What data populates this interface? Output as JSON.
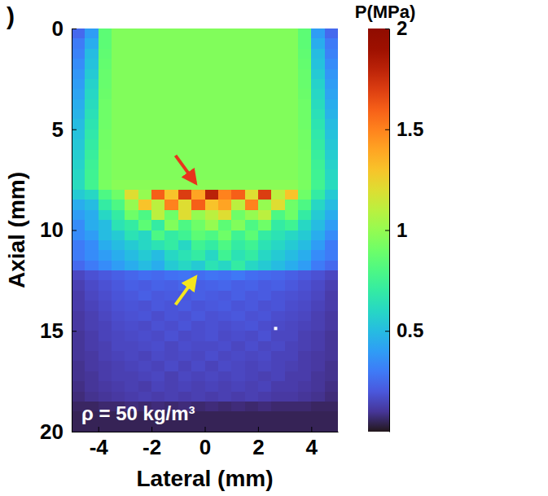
{
  "chart_data": {
    "type": "heatmap",
    "panel_label": ")",
    "x_label": "Lateral (mm)",
    "y_label": "Axial (mm)",
    "annotation": "ρ = 50 kg/m³",
    "color": "turbo",
    "xlim": [
      -5,
      5
    ],
    "ylim": [
      0,
      20
    ],
    "xticks": [
      -4,
      -2,
      0,
      2,
      4
    ],
    "yticks": [
      0,
      5,
      10,
      15,
      20
    ],
    "x": [
      -4.75,
      -4.25,
      -3.75,
      -3.25,
      -2.75,
      -2.25,
      -1.75,
      -1.25,
      -0.75,
      -0.25,
      0.25,
      0.75,
      1.25,
      1.75,
      2.25,
      2.75,
      3.25,
      3.75,
      4.25,
      4.75
    ],
    "y": [
      0.25,
      0.75,
      1.25,
      1.75,
      2.25,
      2.75,
      3.25,
      3.75,
      4.25,
      4.75,
      5.25,
      5.75,
      6.25,
      6.75,
      7.25,
      7.75,
      8.25,
      8.75,
      9.25,
      9.75,
      10.25,
      10.75,
      11.25,
      11.75,
      12.25,
      12.75,
      13.25,
      13.75,
      14.25,
      14.75,
      15.25,
      15.75,
      16.25,
      16.75,
      17.25,
      17.75,
      18.25,
      18.75,
      19.25,
      19.75
    ],
    "z": [
      [
        0.25,
        0.4,
        0.85,
        0.95,
        0.95,
        0.95,
        0.95,
        0.95,
        0.95,
        0.95,
        0.95,
        0.95,
        0.95,
        0.95,
        0.95,
        0.95,
        0.95,
        0.85,
        0.4,
        0.25
      ],
      [
        0.3,
        0.45,
        0.85,
        0.95,
        0.95,
        0.95,
        0.95,
        0.95,
        0.95,
        0.95,
        0.95,
        0.95,
        0.95,
        0.95,
        0.95,
        0.95,
        0.95,
        0.85,
        0.45,
        0.3
      ],
      [
        0.32,
        0.5,
        0.86,
        0.95,
        0.95,
        0.95,
        0.95,
        0.95,
        0.95,
        0.95,
        0.95,
        0.95,
        0.95,
        0.95,
        0.95,
        0.95,
        0.95,
        0.86,
        0.5,
        0.32
      ],
      [
        0.35,
        0.52,
        0.87,
        0.95,
        0.95,
        0.95,
        0.95,
        0.95,
        0.95,
        0.95,
        0.95,
        0.95,
        0.95,
        0.95,
        0.95,
        0.95,
        0.95,
        0.87,
        0.52,
        0.35
      ],
      [
        0.38,
        0.55,
        0.88,
        0.95,
        0.95,
        0.95,
        0.95,
        0.95,
        0.95,
        0.95,
        0.95,
        0.95,
        0.95,
        0.95,
        0.95,
        0.95,
        0.95,
        0.88,
        0.55,
        0.38
      ],
      [
        0.4,
        0.58,
        0.88,
        0.95,
        0.95,
        0.95,
        0.95,
        0.95,
        0.95,
        0.95,
        0.95,
        0.95,
        0.95,
        0.95,
        0.95,
        0.95,
        0.95,
        0.88,
        0.58,
        0.4
      ],
      [
        0.42,
        0.6,
        0.89,
        0.95,
        0.95,
        0.95,
        0.95,
        0.95,
        0.95,
        0.95,
        0.95,
        0.95,
        0.95,
        0.95,
        0.95,
        0.95,
        0.95,
        0.89,
        0.6,
        0.42
      ],
      [
        0.45,
        0.62,
        0.9,
        0.95,
        0.95,
        0.95,
        0.95,
        0.95,
        0.95,
        0.95,
        0.95,
        0.95,
        0.95,
        0.95,
        0.95,
        0.95,
        0.95,
        0.9,
        0.62,
        0.45
      ],
      [
        0.47,
        0.64,
        0.9,
        0.95,
        0.95,
        0.95,
        0.95,
        0.95,
        0.95,
        0.95,
        0.95,
        0.95,
        0.95,
        0.95,
        0.95,
        0.95,
        0.95,
        0.9,
        0.64,
        0.47
      ],
      [
        0.5,
        0.66,
        0.9,
        0.95,
        0.95,
        0.95,
        0.95,
        0.95,
        0.95,
        0.95,
        0.95,
        0.95,
        0.95,
        0.95,
        0.95,
        0.95,
        0.95,
        0.9,
        0.66,
        0.5
      ],
      [
        0.52,
        0.68,
        0.91,
        0.95,
        0.95,
        0.95,
        0.95,
        0.95,
        0.95,
        0.95,
        0.95,
        0.95,
        0.95,
        0.95,
        0.95,
        0.95,
        0.95,
        0.91,
        0.68,
        0.52
      ],
      [
        0.54,
        0.7,
        0.91,
        0.95,
        0.95,
        0.95,
        0.95,
        0.95,
        0.95,
        0.95,
        0.95,
        0.95,
        0.95,
        0.95,
        0.95,
        0.95,
        0.95,
        0.91,
        0.7,
        0.54
      ],
      [
        0.56,
        0.72,
        0.92,
        0.95,
        0.95,
        0.95,
        0.95,
        0.95,
        0.95,
        0.95,
        0.95,
        0.95,
        0.95,
        0.95,
        0.95,
        0.95,
        0.95,
        0.92,
        0.72,
        0.56
      ],
      [
        0.58,
        0.74,
        0.92,
        0.95,
        0.95,
        0.95,
        0.95,
        0.95,
        0.95,
        0.95,
        0.95,
        0.95,
        0.95,
        0.95,
        0.95,
        0.95,
        0.95,
        0.92,
        0.74,
        0.58
      ],
      [
        0.6,
        0.75,
        0.92,
        0.95,
        0.95,
        0.95,
        0.95,
        0.95,
        0.95,
        0.95,
        0.95,
        0.95,
        0.95,
        0.95,
        0.95,
        0.95,
        0.95,
        0.92,
        0.75,
        0.6
      ],
      [
        0.62,
        0.76,
        0.93,
        0.97,
        0.97,
        0.97,
        0.97,
        0.97,
        0.97,
        0.97,
        0.97,
        0.97,
        0.97,
        0.97,
        0.97,
        0.97,
        0.97,
        0.93,
        0.76,
        0.62
      ],
      [
        0.55,
        0.6,
        0.8,
        0.9,
        1.2,
        1.0,
        1.6,
        1.3,
        1.7,
        1.4,
        1.8,
        1.5,
        1.6,
        1.2,
        1.7,
        1.1,
        1.3,
        0.9,
        0.7,
        0.55
      ],
      [
        0.45,
        0.5,
        0.7,
        0.8,
        1.0,
        1.3,
        1.1,
        1.5,
        1.2,
        1.6,
        1.3,
        1.4,
        1.1,
        1.5,
        1.0,
        1.2,
        0.9,
        0.8,
        0.6,
        0.5
      ],
      [
        0.4,
        0.45,
        0.6,
        0.7,
        0.9,
        0.8,
        1.1,
        0.9,
        1.2,
        1.0,
        1.1,
        1.2,
        0.9,
        1.0,
        1.1,
        0.8,
        0.9,
        0.7,
        0.55,
        0.45
      ],
      [
        0.35,
        0.45,
        0.5,
        0.65,
        0.7,
        0.85,
        0.7,
        0.95,
        0.8,
        0.9,
        1.0,
        0.85,
        0.95,
        0.8,
        0.9,
        0.7,
        0.75,
        0.6,
        0.5,
        0.4
      ],
      [
        0.35,
        0.4,
        0.5,
        0.55,
        0.65,
        0.6,
        0.8,
        0.7,
        0.75,
        0.85,
        0.8,
        0.9,
        0.75,
        0.85,
        0.7,
        0.65,
        0.6,
        0.55,
        0.45,
        0.35
      ],
      [
        0.3,
        0.35,
        0.45,
        0.5,
        0.55,
        0.6,
        0.65,
        0.7,
        0.6,
        0.75,
        0.7,
        0.8,
        0.7,
        0.75,
        0.65,
        0.6,
        0.55,
        0.5,
        0.4,
        0.3
      ],
      [
        0.3,
        0.35,
        0.4,
        0.45,
        0.5,
        0.55,
        0.5,
        0.6,
        0.65,
        0.7,
        0.6,
        0.75,
        0.65,
        0.7,
        0.6,
        0.55,
        0.5,
        0.45,
        0.35,
        0.3
      ],
      [
        0.25,
        0.3,
        0.35,
        0.4,
        0.45,
        0.5,
        0.45,
        0.55,
        0.6,
        0.55,
        0.65,
        0.6,
        0.7,
        0.6,
        0.55,
        0.5,
        0.45,
        0.4,
        0.3,
        0.25
      ],
      [
        0.15,
        0.18,
        0.2,
        0.22,
        0.24,
        0.26,
        0.25,
        0.27,
        0.28,
        0.26,
        0.28,
        0.27,
        0.29,
        0.26,
        0.25,
        0.24,
        0.22,
        0.2,
        0.18,
        0.15
      ],
      [
        0.13,
        0.16,
        0.18,
        0.2,
        0.22,
        0.21,
        0.23,
        0.22,
        0.24,
        0.22,
        0.23,
        0.24,
        0.22,
        0.23,
        0.21,
        0.22,
        0.2,
        0.18,
        0.16,
        0.13
      ],
      [
        0.12,
        0.15,
        0.17,
        0.19,
        0.2,
        0.22,
        0.2,
        0.21,
        0.2,
        0.22,
        0.21,
        0.2,
        0.22,
        0.2,
        0.21,
        0.19,
        0.18,
        0.17,
        0.15,
        0.12
      ],
      [
        0.12,
        0.14,
        0.16,
        0.18,
        0.19,
        0.18,
        0.2,
        0.19,
        0.21,
        0.19,
        0.2,
        0.21,
        0.19,
        0.2,
        0.18,
        0.19,
        0.17,
        0.16,
        0.14,
        0.12
      ],
      [
        0.11,
        0.13,
        0.15,
        0.17,
        0.18,
        0.19,
        0.17,
        0.19,
        0.18,
        0.2,
        0.18,
        0.19,
        0.2,
        0.18,
        0.19,
        0.17,
        0.16,
        0.15,
        0.13,
        0.11
      ],
      [
        0.11,
        0.13,
        0.14,
        0.16,
        0.17,
        0.16,
        0.18,
        0.17,
        0.19,
        0.17,
        0.18,
        0.17,
        0.18,
        0.19,
        0.17,
        0.16,
        0.15,
        0.14,
        0.13,
        0.11
      ],
      [
        0.1,
        0.12,
        0.14,
        0.15,
        0.16,
        0.17,
        0.16,
        0.18,
        0.16,
        0.17,
        0.18,
        0.16,
        0.17,
        0.16,
        0.18,
        0.15,
        0.15,
        0.13,
        0.12,
        0.1
      ],
      [
        0.1,
        0.12,
        0.13,
        0.15,
        0.15,
        0.16,
        0.17,
        0.15,
        0.17,
        0.16,
        0.16,
        0.17,
        0.15,
        0.17,
        0.15,
        0.16,
        0.14,
        0.13,
        0.12,
        0.1
      ],
      [
        0.1,
        0.11,
        0.13,
        0.14,
        0.15,
        0.14,
        0.16,
        0.15,
        0.16,
        0.15,
        0.17,
        0.15,
        0.16,
        0.15,
        0.16,
        0.14,
        0.14,
        0.12,
        0.11,
        0.1
      ],
      [
        0.09,
        0.11,
        0.12,
        0.13,
        0.14,
        0.15,
        0.14,
        0.16,
        0.14,
        0.16,
        0.14,
        0.16,
        0.15,
        0.14,
        0.15,
        0.14,
        0.13,
        0.12,
        0.11,
        0.09
      ],
      [
        0.09,
        0.1,
        0.12,
        0.13,
        0.13,
        0.14,
        0.15,
        0.13,
        0.15,
        0.14,
        0.15,
        0.14,
        0.15,
        0.14,
        0.13,
        0.14,
        0.12,
        0.12,
        0.1,
        0.09
      ],
      [
        0.08,
        0.1,
        0.11,
        0.12,
        0.13,
        0.12,
        0.14,
        0.13,
        0.14,
        0.13,
        0.14,
        0.13,
        0.14,
        0.13,
        0.14,
        0.12,
        0.12,
        0.11,
        0.1,
        0.08
      ],
      [
        0.07,
        0.09,
        0.1,
        0.11,
        0.12,
        0.13,
        0.12,
        0.13,
        0.12,
        0.13,
        0.12,
        0.13,
        0.12,
        0.13,
        0.12,
        0.11,
        0.11,
        0.1,
        0.09,
        0.07
      ],
      [
        0.05,
        0.05,
        0.06,
        0.06,
        0.07,
        0.06,
        0.07,
        0.06,
        0.07,
        0.06,
        0.07,
        0.06,
        0.07,
        0.06,
        0.07,
        0.06,
        0.06,
        0.06,
        0.05,
        0.05
      ],
      [
        0.04,
        0.04,
        0.04,
        0.04,
        0.04,
        0.04,
        0.04,
        0.04,
        0.04,
        0.04,
        0.04,
        0.04,
        0.04,
        0.04,
        0.04,
        0.04,
        0.04,
        0.04,
        0.04,
        0.04
      ],
      [
        0.04,
        0.04,
        0.04,
        0.04,
        0.04,
        0.04,
        0.04,
        0.04,
        0.04,
        0.04,
        0.04,
        0.04,
        0.04,
        0.04,
        0.04,
        0.04,
        0.04,
        0.04,
        0.04,
        0.04
      ]
    ],
    "colorbar": {
      "title": "P(MPa)",
      "range": [
        0,
        2
      ],
      "ticks": [
        0.5,
        1,
        1.5,
        2
      ]
    }
  }
}
